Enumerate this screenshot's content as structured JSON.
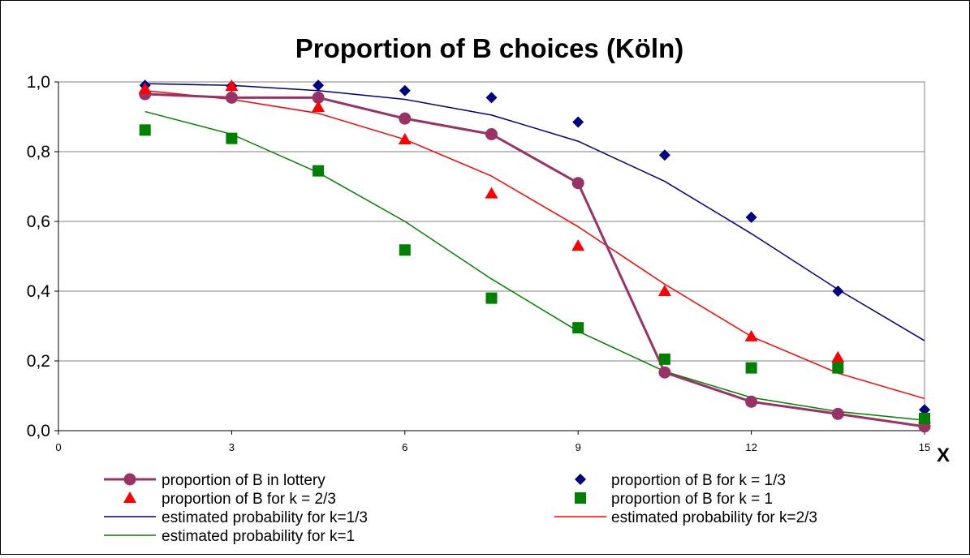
{
  "chart_data": {
    "type": "scatter",
    "title": "Proportion of B choices (Köln)",
    "xlabel": "X",
    "ylabel": "",
    "xlim": [
      0,
      15
    ],
    "ylim": [
      0,
      1
    ],
    "x_ticks": [
      0,
      3,
      6,
      9,
      12,
      15
    ],
    "x_tick_labels": [
      "0",
      "3",
      "6",
      "9",
      "12",
      "15"
    ],
    "y_ticks": [
      0,
      0.2,
      0.4,
      0.6,
      0.8,
      1.0
    ],
    "y_tick_labels": [
      "0,0",
      "0,2",
      "0,4",
      "0,6",
      "0,8",
      "1,0"
    ],
    "grid": "horizontal",
    "legend_position": "bottom",
    "series": [
      {
        "name": "proportion of B in lottery",
        "kind": "line-marker",
        "marker": "circle",
        "color": "#993366",
        "x": [
          1.5,
          3,
          4.5,
          6,
          7.5,
          9,
          10.5,
          12,
          13.5,
          15
        ],
        "y": [
          0.965,
          0.955,
          0.955,
          0.895,
          0.85,
          0.71,
          0.167,
          0.083,
          0.048,
          0.012
        ]
      },
      {
        "name": "proportion of B for k = 1/3",
        "kind": "marker",
        "marker": "diamond",
        "color": "#000080",
        "x": [
          1.5,
          3,
          4.5,
          6,
          7.5,
          9,
          10.5,
          12,
          13.5,
          15
        ],
        "y": [
          0.99,
          0.988,
          0.99,
          0.975,
          0.955,
          0.885,
          0.79,
          0.612,
          0.4,
          0.06
        ]
      },
      {
        "name": "proportion of B for k = 2/3",
        "kind": "marker",
        "marker": "triangle",
        "color": "#ff0000",
        "x": [
          1.5,
          3,
          4.5,
          6,
          7.5,
          9,
          10.5,
          12,
          13.5,
          15
        ],
        "y": [
          0.98,
          0.988,
          0.928,
          0.835,
          0.68,
          0.53,
          0.4,
          0.27,
          0.21,
          0.035
        ]
      },
      {
        "name": "proportion of B for k = 1",
        "kind": "marker",
        "marker": "square",
        "color": "#008000",
        "x": [
          1.5,
          3,
          4.5,
          6,
          7.5,
          9,
          10.5,
          12,
          13.5,
          15
        ],
        "y": [
          0.862,
          0.838,
          0.745,
          0.518,
          0.38,
          0.295,
          0.205,
          0.18,
          0.18,
          0.035
        ]
      },
      {
        "name": "estimated probability for k=1/3",
        "kind": "line",
        "color": "#000080",
        "x": [
          1.5,
          3,
          4.5,
          6,
          7.5,
          9,
          10.5,
          12,
          13.5,
          15
        ],
        "y": [
          0.995,
          0.99,
          0.975,
          0.95,
          0.905,
          0.83,
          0.715,
          0.565,
          0.405,
          0.258
        ]
      },
      {
        "name": "estimated probability for k=2/3",
        "kind": "line",
        "color": "#ff0000",
        "x": [
          1.5,
          3,
          4.5,
          6,
          7.5,
          9,
          10.5,
          12,
          13.5,
          15
        ],
        "y": [
          0.975,
          0.95,
          0.91,
          0.835,
          0.73,
          0.585,
          0.42,
          0.27,
          0.165,
          0.092
        ]
      },
      {
        "name": "estimated probability for k=1",
        "kind": "line",
        "color": "#008000",
        "x": [
          1.5,
          3,
          4.5,
          6,
          7.5,
          9,
          10.5,
          12,
          13.5,
          15
        ],
        "y": [
          0.915,
          0.85,
          0.74,
          0.6,
          0.435,
          0.285,
          0.17,
          0.095,
          0.055,
          0.03
        ]
      }
    ]
  }
}
